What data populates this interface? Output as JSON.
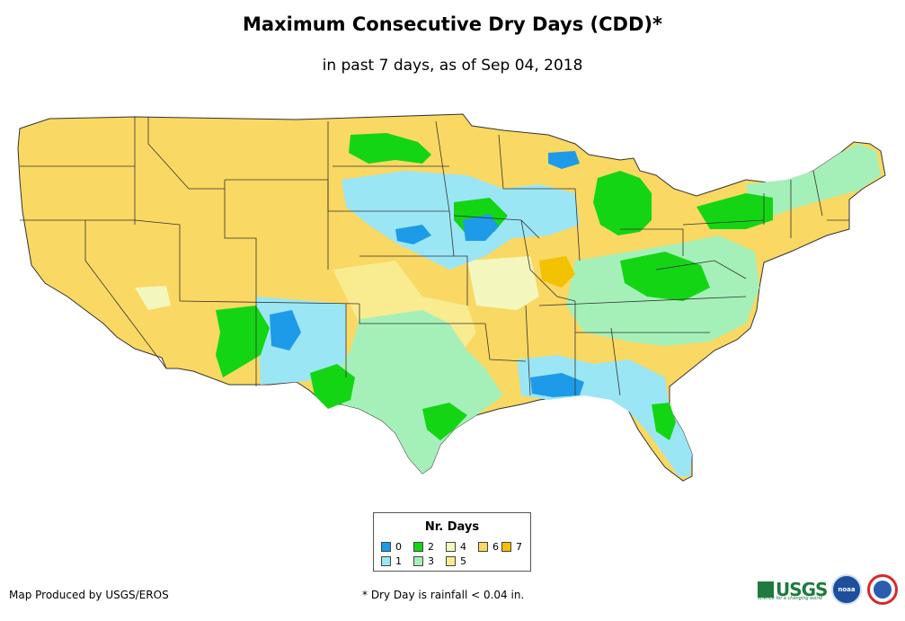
{
  "header": {
    "title": "Maximum Consecutive Dry Days (CDD)*",
    "subtitle": "in past 7 days, as of Sep 04, 2018"
  },
  "legend": {
    "title": "Nr. Days",
    "items": [
      {
        "label": "0",
        "color": "#1e9be8"
      },
      {
        "label": "1",
        "color": "#9be6f5"
      },
      {
        "label": "2",
        "color": "#14d514"
      },
      {
        "label": "3",
        "color": "#a5f0b9"
      },
      {
        "label": "4",
        "color": "#f3f7bd"
      },
      {
        "label": "5",
        "color": "#f9eb8f"
      },
      {
        "label": "6",
        "color": "#f9d863"
      },
      {
        "label": "7",
        "color": "#f2c100"
      }
    ]
  },
  "footer": {
    "credit": "Map Produced by USGS/EROS",
    "footnote": "* Dry Day is rainfall < 0.04 in.",
    "usgs_text": "USGS",
    "usgs_tagline": "science for a changing world",
    "noaa_text": "noaa"
  }
}
